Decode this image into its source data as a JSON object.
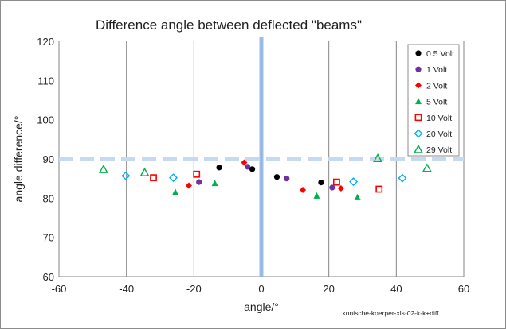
{
  "chart_data": {
    "type": "scatter",
    "title": "Difference angle between deflected \"beams\"",
    "xlabel": "angle/°",
    "ylabel": "angle difference/°",
    "xlim": [
      -60,
      60
    ],
    "ylim": [
      60,
      120
    ],
    "xticks": [
      -60,
      -40,
      -20,
      0,
      20,
      40,
      60
    ],
    "yticks": [
      60,
      70,
      80,
      90,
      100,
      110,
      120
    ],
    "grid": "vertical",
    "reference_lines": {
      "x": 0,
      "y": 90
    },
    "legend_position": "top-right",
    "annotation": "konische-koerper-xls-02-k-k+diff",
    "series": [
      {
        "name": "0.5 Volt",
        "marker": "circle",
        "color": "#000000",
        "points": [
          [
            -12.5,
            87.8
          ],
          [
            -2.7,
            87.4
          ],
          [
            4.6,
            85.4
          ],
          [
            17.7,
            84.0
          ]
        ]
      },
      {
        "name": "1 Volt",
        "marker": "circle",
        "color": "#7030a0",
        "points": [
          [
            -18.5,
            84.1
          ],
          [
            -4.1,
            88.0
          ],
          [
            7.5,
            85.0
          ],
          [
            21.0,
            82.7
          ]
        ]
      },
      {
        "name": "2 Volt",
        "marker": "diamond",
        "color": "#ff0000",
        "points": [
          [
            -21.5,
            83.2
          ],
          [
            -5.1,
            89.1
          ],
          [
            12.3,
            82.1
          ],
          [
            23.6,
            82.5
          ]
        ]
      },
      {
        "name": "5 Volt",
        "marker": "triangle",
        "color": "#00b050",
        "points": [
          [
            -25.5,
            81.5
          ],
          [
            -13.8,
            83.8
          ],
          [
            16.4,
            80.6
          ],
          [
            28.5,
            80.2
          ]
        ]
      },
      {
        "name": "10 Volt",
        "marker": "square-open",
        "color": "#ff0000",
        "points": [
          [
            -32.0,
            85.2
          ],
          [
            -19.2,
            86.1
          ],
          [
            22.3,
            84.1
          ],
          [
            34.9,
            82.3
          ]
        ]
      },
      {
        "name": "20 Volt",
        "marker": "diamond-open",
        "color": "#00b0f0",
        "points": [
          [
            -40.2,
            85.7
          ],
          [
            -26.1,
            85.2
          ],
          [
            27.3,
            84.2
          ],
          [
            41.8,
            85.1
          ]
        ]
      },
      {
        "name": "29 Volt",
        "marker": "triangle-open",
        "color": "#00b050",
        "points": [
          [
            -46.8,
            87.3
          ],
          [
            -34.6,
            86.5
          ],
          [
            34.5,
            90.1
          ],
          [
            49.1,
            87.6
          ]
        ]
      }
    ]
  },
  "colors": {
    "grid": "#868686",
    "ref_vertical": "#8db3e2",
    "ref_horizontal": "#c6d9f1"
  }
}
